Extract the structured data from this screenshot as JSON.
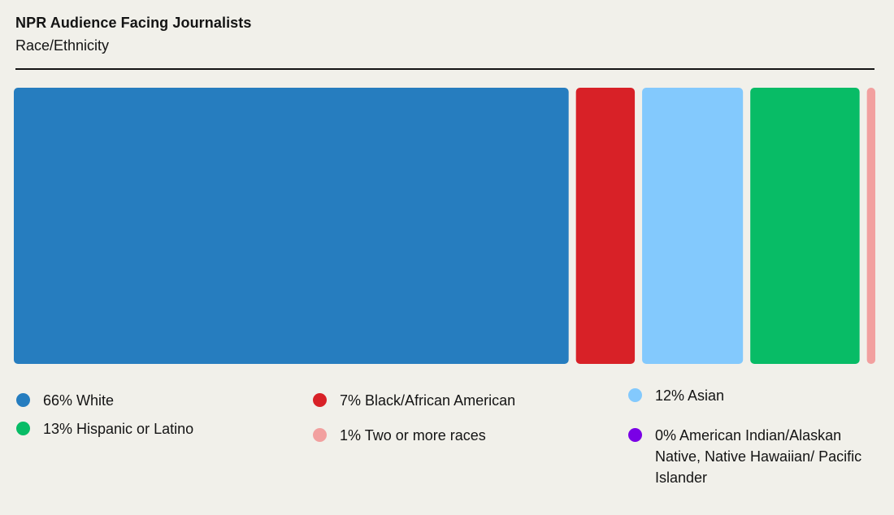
{
  "header": {
    "title": "NPR Audience Facing Journalists",
    "subtitle": "Race/Ethnicity"
  },
  "chart_data": {
    "type": "bar",
    "orientation": "horizontal-stacked",
    "title": "NPR Audience Facing Journalists",
    "subtitle": "Race/Ethnicity",
    "categories": [
      "White",
      "Black/African American",
      "Asian",
      "Hispanic or Latino",
      "Two or more races",
      "American Indian/Alaskan Native, Native Hawaiian/Pacific Islander"
    ],
    "values": [
      66,
      7,
      12,
      13,
      1,
      0
    ],
    "colors": [
      "#267dbf",
      "#d82127",
      "#83c9fd",
      "#08bc66",
      "#f2a09f",
      "#7a00e6"
    ],
    "unit": "%",
    "legend": [
      {
        "label": "66% White",
        "color": "#267dbf"
      },
      {
        "label": "7% Black/African American",
        "color": "#d82127"
      },
      {
        "label": "12% Asian",
        "color": "#83c9fd"
      },
      {
        "label": "13% Hispanic or Latino",
        "color": "#08bc66"
      },
      {
        "label": "1% Two or more races",
        "color": "#f2a09f"
      },
      {
        "label": "0% American Indian/Alaskan Native, Native Hawaiian/ Pacific Islander",
        "color": "#7a00e6"
      }
    ],
    "legend_placement": "bottom"
  }
}
